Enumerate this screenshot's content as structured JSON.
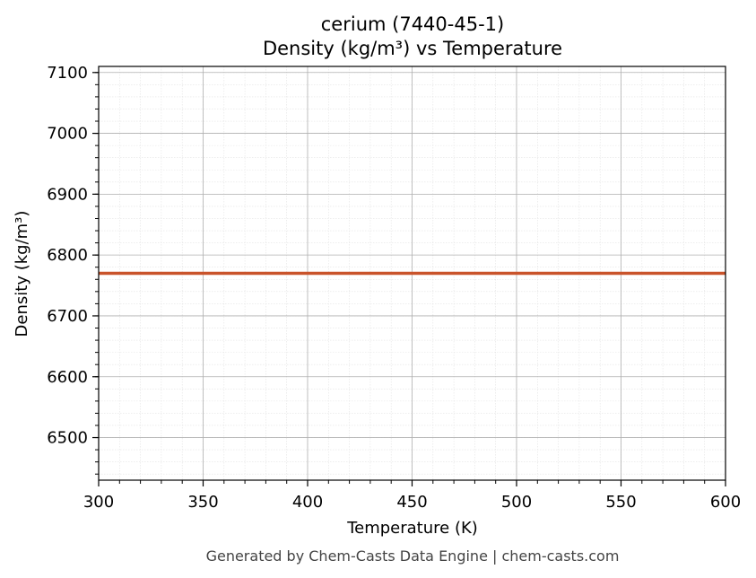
{
  "chart_data": {
    "type": "line",
    "title": "cerium (7440-45-1)",
    "subtitle": "Density (kg/m³) vs Temperature",
    "xlabel": "Temperature (K)",
    "ylabel": "Density (kg/m³)",
    "xlim": [
      300,
      600
    ],
    "ylim": [
      6430,
      7110
    ],
    "x_ticks": [
      300,
      350,
      400,
      450,
      500,
      550,
      600
    ],
    "y_ticks": [
      6500,
      6600,
      6700,
      6800,
      6900,
      7000,
      7100
    ],
    "grid": true,
    "series": [
      {
        "x": [
          300,
          350,
          400,
          450,
          500,
          550,
          600
        ],
        "y": [
          6770,
          6770,
          6770,
          6770,
          6770,
          6770,
          6770
        ],
        "color": "#c9532a"
      }
    ]
  },
  "footer": "Generated by Chem-Casts Data Engine | chem-casts.com"
}
